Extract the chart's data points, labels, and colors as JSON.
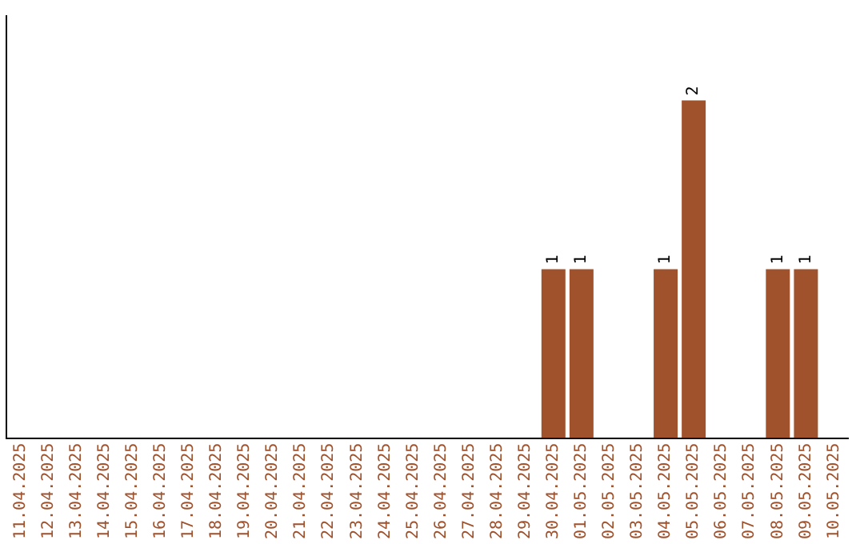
{
  "chart_data": {
    "type": "bar",
    "categories": [
      "11.04.2025",
      "12.04.2025",
      "13.04.2025",
      "14.04.2025",
      "15.04.2025",
      "16.04.2025",
      "17.04.2025",
      "18.04.2025",
      "19.04.2025",
      "20.04.2025",
      "21.04.2025",
      "22.04.2025",
      "23.04.2025",
      "24.04.2025",
      "25.04.2025",
      "26.04.2025",
      "27.04.2025",
      "28.04.2025",
      "29.04.2025",
      "30.04.2025",
      "01.05.2025",
      "02.05.2025",
      "03.05.2025",
      "04.05.2025",
      "05.05.2025",
      "06.05.2025",
      "07.05.2025",
      "08.05.2025",
      "09.05.2025",
      "10.05.2025"
    ],
    "values": [
      null,
      null,
      null,
      null,
      null,
      null,
      null,
      null,
      null,
      null,
      null,
      null,
      null,
      null,
      null,
      null,
      null,
      null,
      null,
      1,
      1,
      null,
      null,
      1,
      2,
      null,
      null,
      1,
      1,
      null
    ],
    "color": "#a0522d",
    "data_labels": true,
    "grid": false,
    "legend": false
  }
}
